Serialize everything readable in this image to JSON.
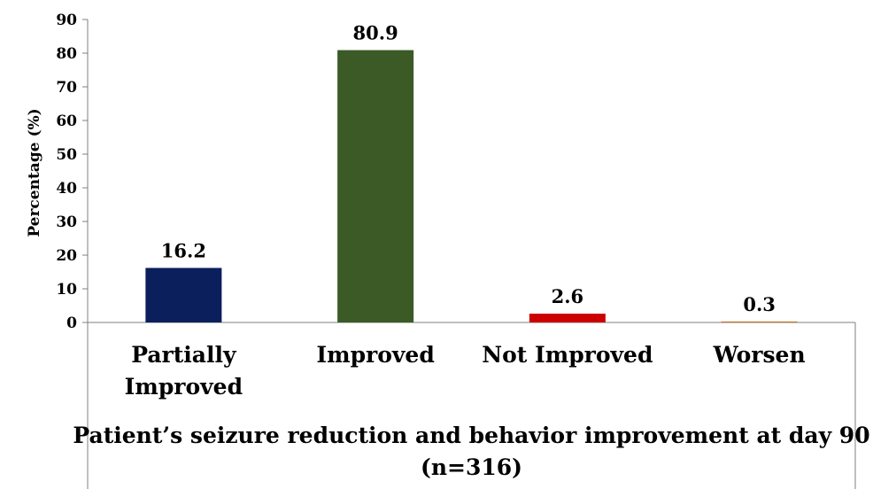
{
  "chart_data": {
    "type": "bar",
    "categories": [
      "Partially Improved",
      "Improved",
      "Not Improved",
      "Worsen"
    ],
    "category_lines": [
      [
        "Partially",
        "Improved"
      ],
      [
        "Improved"
      ],
      [
        "Not Improved"
      ],
      [
        "Worsen"
      ]
    ],
    "values": [
      16.2,
      80.9,
      2.6,
      0.3
    ],
    "data_labels": [
      "16.2",
      "80.9",
      "2.6",
      "0.3"
    ],
    "colors": [
      "#0a1f5c",
      "#3b5a26",
      "#cc0000",
      "#c8782a"
    ],
    "ylabel": "Percentage (%)",
    "xlabel_lines": [
      "Patient’s seizure reduction and behavior improvement at day 90",
      "(n=316)"
    ],
    "ylim": [
      0,
      90
    ],
    "yticks": [
      0,
      10,
      20,
      30,
      40,
      50,
      60,
      70,
      80,
      90
    ],
    "grid": false,
    "legend": "none"
  }
}
